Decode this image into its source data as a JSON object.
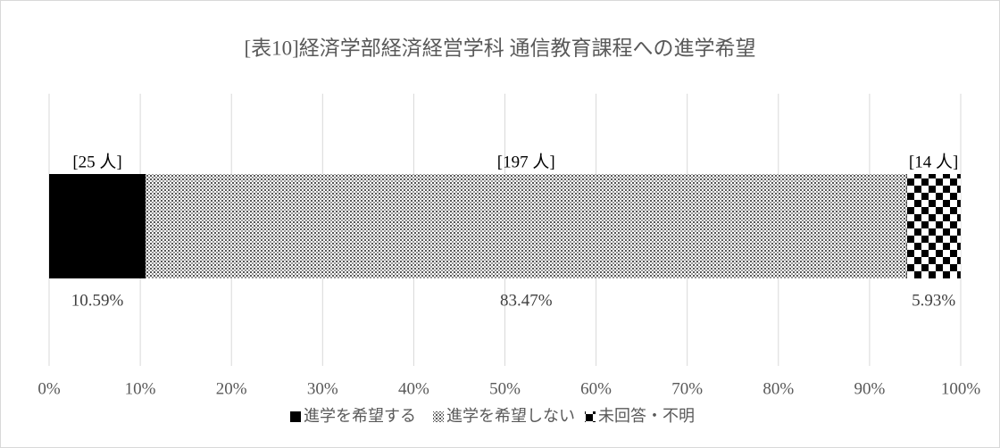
{
  "chart_data": {
    "type": "stacked_bar_horizontal",
    "title": "[表10]経済学部経済経営学科 通信教育課程への進学希望",
    "categories": [
      null
    ],
    "series": [
      {
        "name": "進学を希望する",
        "color": "#000000",
        "pattern": "solid",
        "values": [
          10.59
        ],
        "value_labels": [
          "10.59%"
        ],
        "count_labels": [
          "[25 人]"
        ]
      },
      {
        "name": "進学を希望しない",
        "color": "#000000",
        "pattern": "dots",
        "values": [
          83.47
        ],
        "value_labels": [
          "83.47%"
        ],
        "count_labels": [
          "[197 人]"
        ]
      },
      {
        "name": "未回答・不明",
        "color": "#000000",
        "pattern": "checker",
        "values": [
          5.93
        ],
        "value_labels": [
          "5.93%"
        ],
        "count_labels": [
          "[14 人]"
        ]
      }
    ],
    "xlim": [
      0,
      100
    ],
    "xticks": [
      {
        "value": 0,
        "label": "0%"
      },
      {
        "value": 10,
        "label": "10%"
      },
      {
        "value": 20,
        "label": "20%"
      },
      {
        "value": 30,
        "label": "30%"
      },
      {
        "value": 40,
        "label": "40%"
      },
      {
        "value": 50,
        "label": "50%"
      },
      {
        "value": 60,
        "label": "60%"
      },
      {
        "value": 70,
        "label": "70%"
      },
      {
        "value": 80,
        "label": "80%"
      },
      {
        "value": 90,
        "label": "90%"
      },
      {
        "value": 100,
        "label": "100%"
      }
    ],
    "grid": true,
    "legend": "bottom"
  }
}
